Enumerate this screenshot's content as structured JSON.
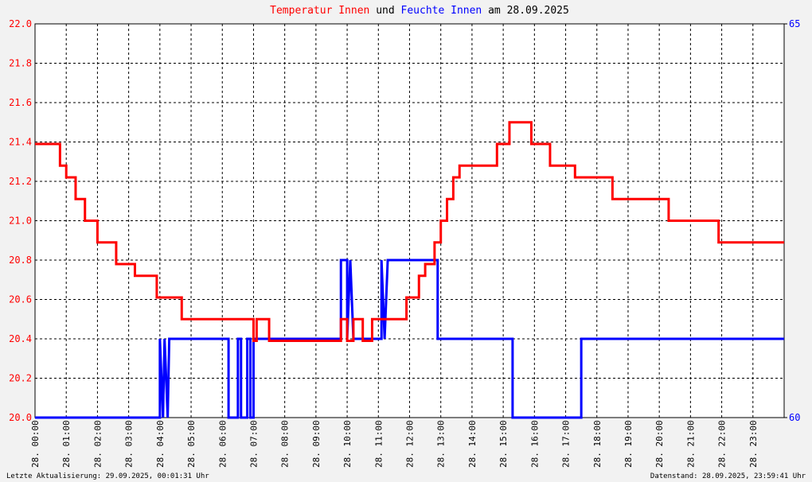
{
  "chart_data": {
    "type": "line",
    "title_connector": "und",
    "title_date": "am 28.09.2025",
    "footer_left": "Letzte Aktualisierung: 29.09.2025, 00:01:31 Uhr",
    "footer_right": "Datenstand: 28.09.2025, 23:59:41 Uhr",
    "grid": true,
    "xlim": [
      0,
      24
    ],
    "xticks": [
      {
        "value": 0,
        "label": "28. 00:00"
      },
      {
        "value": 1,
        "label": "28. 01:00"
      },
      {
        "value": 2,
        "label": "28. 02:00"
      },
      {
        "value": 3,
        "label": "28. 03:00"
      },
      {
        "value": 4,
        "label": "28. 04:00"
      },
      {
        "value": 5,
        "label": "28. 05:00"
      },
      {
        "value": 6,
        "label": "28. 06:00"
      },
      {
        "value": 7,
        "label": "28. 07:00"
      },
      {
        "value": 8,
        "label": "28. 08:00"
      },
      {
        "value": 9,
        "label": "28. 09:00"
      },
      {
        "value": 10,
        "label": "28. 10:00"
      },
      {
        "value": 11,
        "label": "28. 11:00"
      },
      {
        "value": 12,
        "label": "28. 12:00"
      },
      {
        "value": 13,
        "label": "28. 13:00"
      },
      {
        "value": 14,
        "label": "28. 14:00"
      },
      {
        "value": 15,
        "label": "28. 15:00"
      },
      {
        "value": 16,
        "label": "28. 16:00"
      },
      {
        "value": 17,
        "label": "28. 17:00"
      },
      {
        "value": 18,
        "label": "28. 18:00"
      },
      {
        "value": 19,
        "label": "28. 19:00"
      },
      {
        "value": 20,
        "label": "28. 20:00"
      },
      {
        "value": 21,
        "label": "28. 21:00"
      },
      {
        "value": 22,
        "label": "28. 22:00"
      },
      {
        "value": 23,
        "label": "28. 23:00"
      }
    ],
    "ylim": [
      20,
      22
    ],
    "yticks": [
      {
        "value": 20,
        "label": "20.0"
      },
      {
        "value": 20.2,
        "label": "20.2"
      },
      {
        "value": 20.4,
        "label": "20.4"
      },
      {
        "value": 20.6,
        "label": "20.6"
      },
      {
        "value": 20.8,
        "label": "20.8"
      },
      {
        "value": 21,
        "label": "21.0"
      },
      {
        "value": 21.2,
        "label": "21.2"
      },
      {
        "value": 21.4,
        "label": "21.4"
      },
      {
        "value": 21.6,
        "label": "21.6"
      },
      {
        "value": 21.8,
        "label": "21.8"
      },
      {
        "value": 22,
        "label": "22.0"
      }
    ],
    "y2lim": [
      60,
      65
    ],
    "y2ticks": [
      60,
      65
    ],
    "series": [
      {
        "name": "Temperatur Innen",
        "color": "#ff0000",
        "x": [
          0,
          0.8,
          0.8,
          1.0,
          1.0,
          1.3,
          1.3,
          1.6,
          1.6,
          2.0,
          2.0,
          2.6,
          2.6,
          3.2,
          3.2,
          3.9,
          3.9,
          4.7,
          4.7,
          4.8,
          4.8,
          7.0,
          7.0,
          7.1,
          7.1,
          7.5,
          7.5,
          9.8,
          9.8,
          10.0,
          10.0,
          10.2,
          10.2,
          10.5,
          10.5,
          10.8,
          10.8,
          11.9,
          11.9,
          12.3,
          12.3,
          12.5,
          12.5,
          12.8,
          12.8,
          13.0,
          13.0,
          13.2,
          13.2,
          13.4,
          13.4,
          13.6,
          13.6,
          14.8,
          14.8,
          15.2,
          15.2,
          15.9,
          15.9,
          16.5,
          16.5,
          17.3,
          17.3,
          18.5,
          18.5,
          20.3,
          20.3,
          21.9,
          21.9,
          24
        ],
        "values": [
          21.39,
          21.39,
          21.28,
          21.28,
          21.22,
          21.22,
          21.11,
          21.11,
          21.0,
          21.0,
          20.89,
          20.89,
          20.78,
          20.78,
          20.72,
          20.72,
          20.61,
          20.61,
          20.5,
          20.5,
          20.5,
          20.5,
          20.39,
          20.39,
          20.5,
          20.5,
          20.39,
          20.39,
          20.5,
          20.5,
          20.39,
          20.39,
          20.5,
          20.5,
          20.39,
          20.39,
          20.5,
          20.5,
          20.61,
          20.61,
          20.72,
          20.72,
          20.78,
          20.78,
          20.89,
          20.89,
          21.0,
          21.0,
          21.11,
          21.11,
          21.22,
          21.22,
          21.28,
          21.28,
          21.39,
          21.39,
          21.5,
          21.5,
          21.39,
          21.39,
          21.28,
          21.28,
          21.22,
          21.22,
          21.11,
          21.11,
          21.0,
          21.0,
          20.89,
          20.89
        ]
      },
      {
        "name": "Feuchte Innen",
        "color": "#0000ff",
        "axis": "y2",
        "x": [
          0,
          4.0,
          4.0,
          4.1,
          4.15,
          4.25,
          4.3,
          6.2,
          6.2,
          6.5,
          6.5,
          6.6,
          6.6,
          6.8,
          6.8,
          6.9,
          6.9,
          7.0,
          7.0,
          9.8,
          9.8,
          10.0,
          10.0,
          10.1,
          10.2,
          11.1,
          11.1,
          11.2,
          11.3,
          12.9,
          12.9,
          15.3,
          15.3,
          17.5,
          17.5,
          24
        ],
        "values": [
          60,
          60,
          61,
          60,
          61,
          60,
          61,
          61,
          60,
          60,
          61,
          61,
          60,
          60,
          61,
          61,
          60,
          60,
          61,
          61,
          62,
          62,
          61,
          62,
          61,
          61,
          62,
          61,
          62,
          62,
          61,
          61,
          60,
          60,
          61,
          61
        ]
      }
    ]
  }
}
